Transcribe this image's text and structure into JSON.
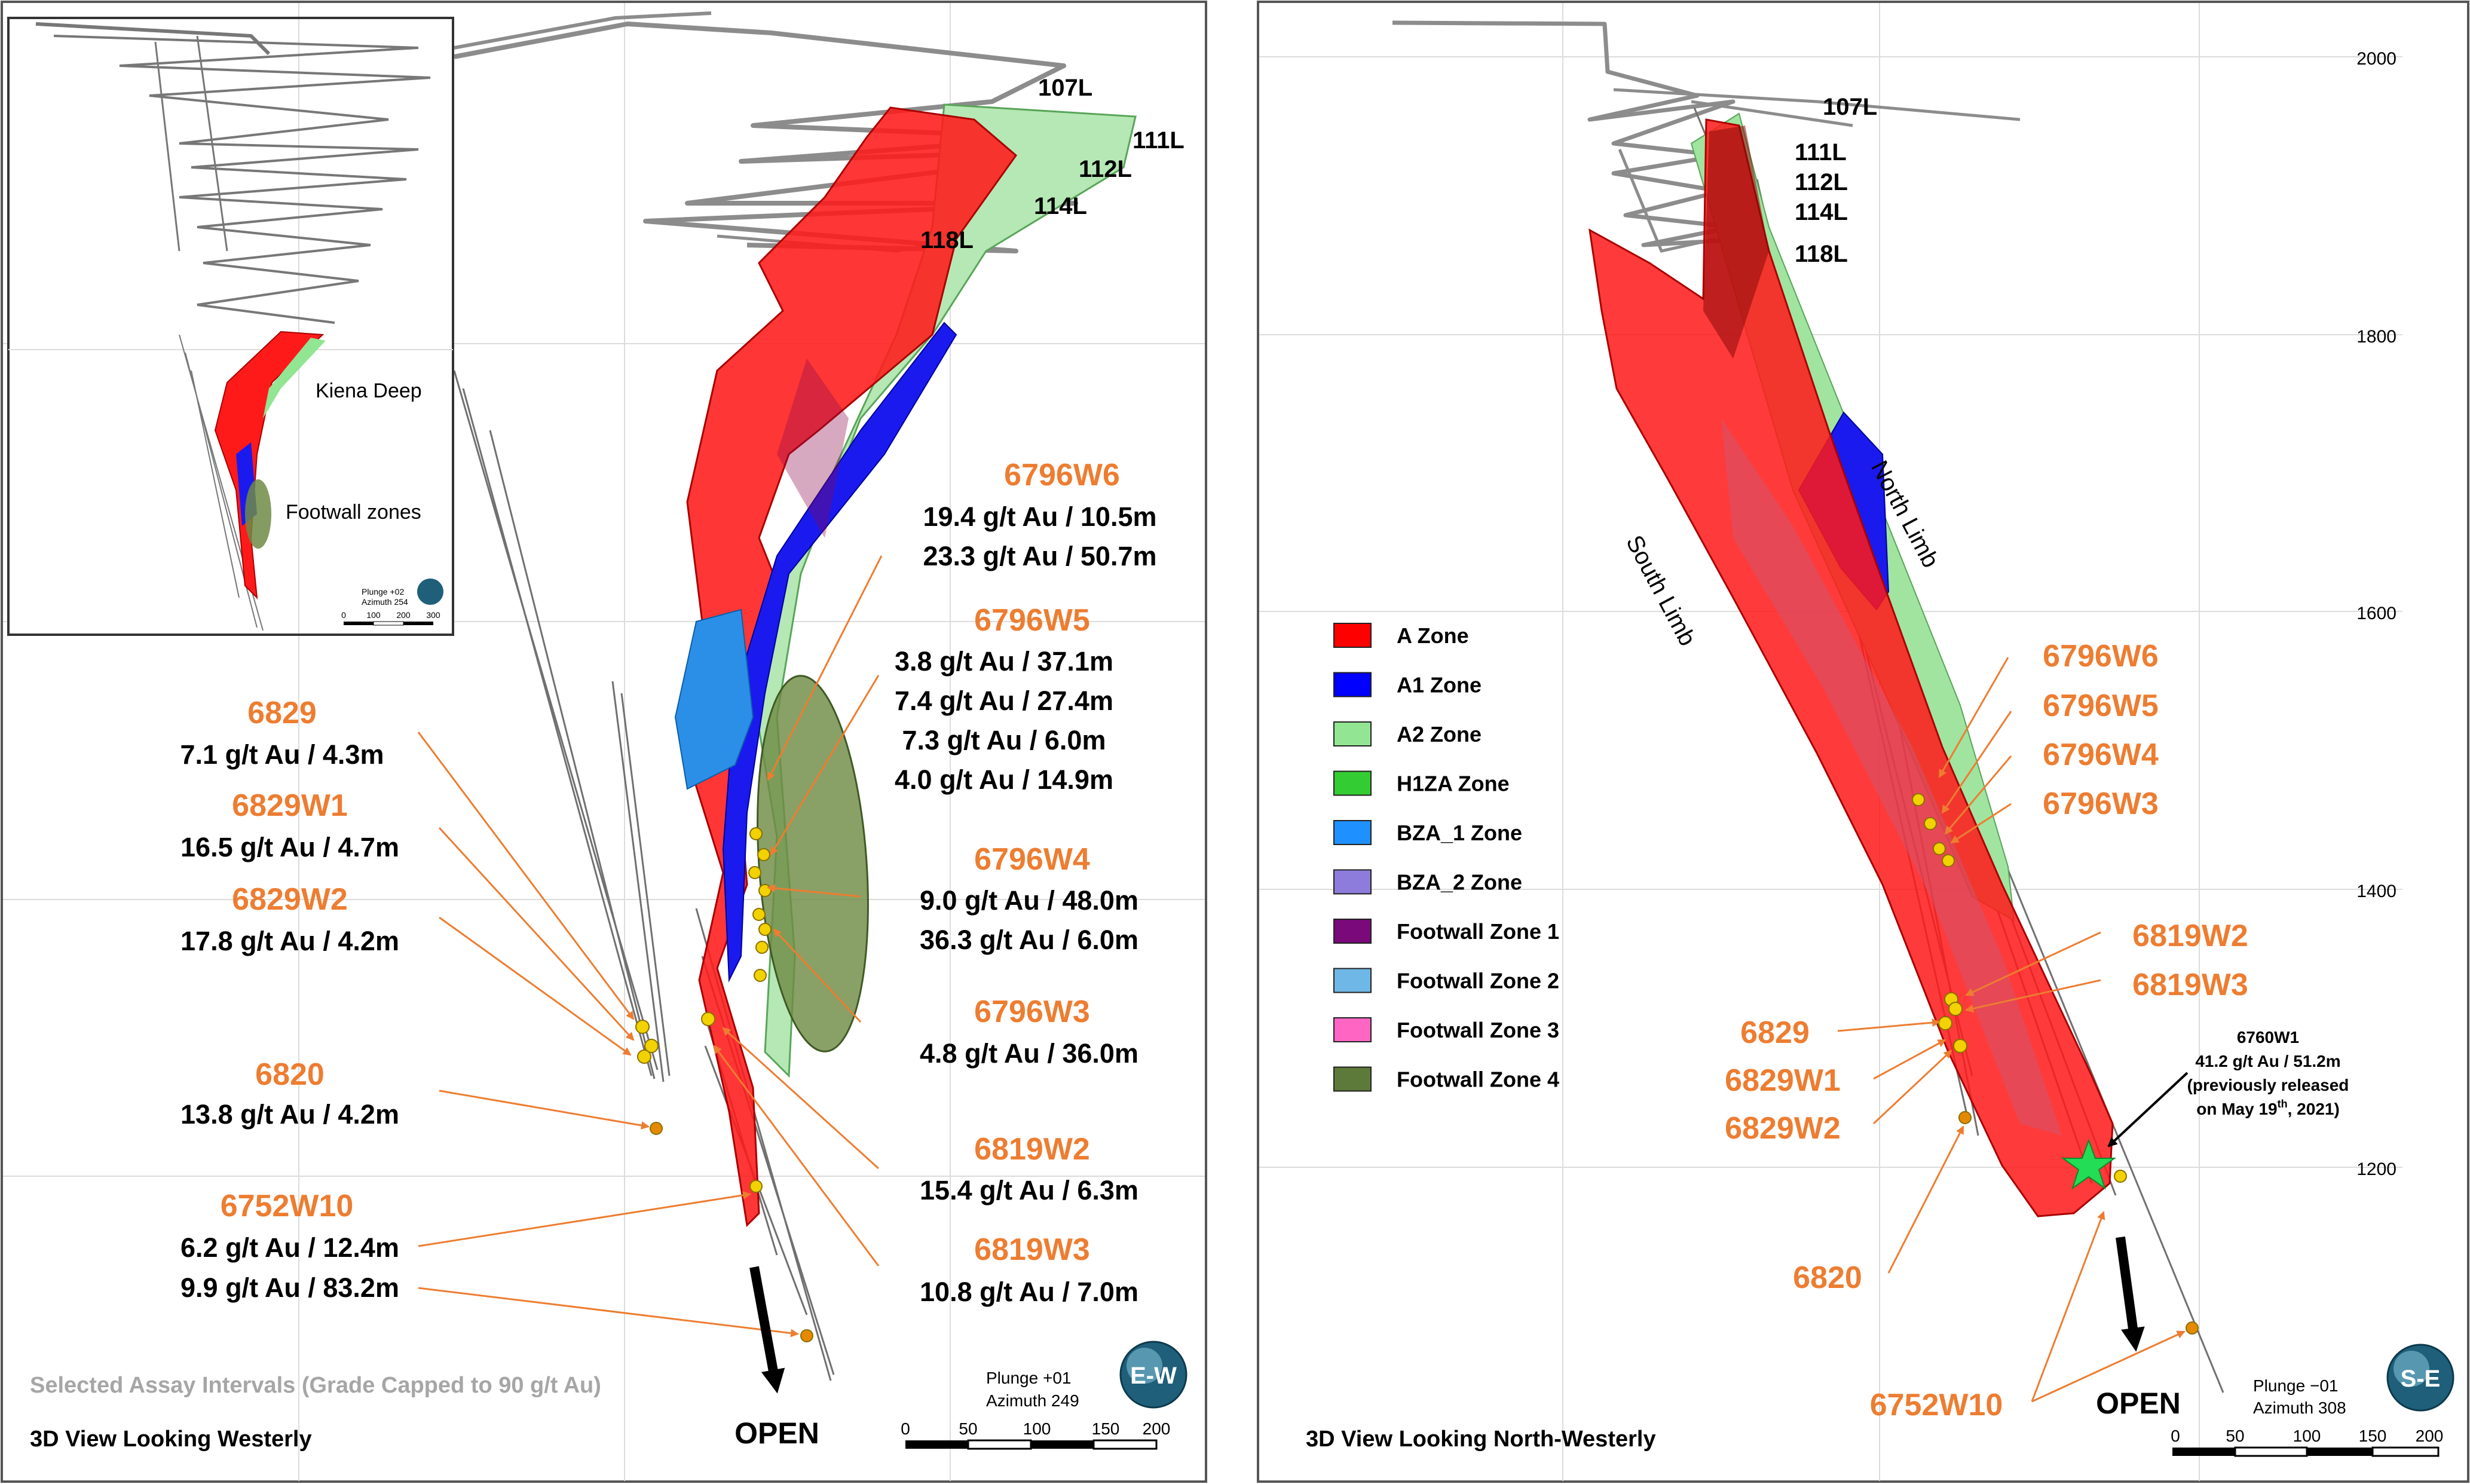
{
  "left_panel": {
    "view_title": "3D View Looking Westerly",
    "disclaimer": "Selected Assay Intervals (Grade Capped to 90 g/t Au)",
    "open_label": "OPEN",
    "plunge": "Plunge +01",
    "azimuth": "Azimuth 249",
    "compass": "E-W",
    "scale_ticks": [
      "0",
      "50",
      "100",
      "150",
      "200"
    ],
    "levels": [
      "107L",
      "111L",
      "112L",
      "114L",
      "118L"
    ],
    "holes": [
      {
        "name": "6796W6",
        "intervals": [
          "19.4 g/t Au / 10.5m",
          "23.3 g/t Au / 50.7m"
        ]
      },
      {
        "name": "6796W5",
        "intervals": [
          "3.8 g/t Au / 37.1m",
          "7.4 g/t Au / 27.4m",
          "7.3 g/t Au / 6.0m",
          "4.0 g/t Au / 14.9m"
        ]
      },
      {
        "name": "6796W4",
        "intervals": [
          "9.0 g/t Au / 48.0m",
          "36.3 g/t Au / 6.0m"
        ]
      },
      {
        "name": "6796W3",
        "intervals": [
          "4.8 g/t Au / 36.0m"
        ]
      },
      {
        "name": "6819W2",
        "intervals": [
          "15.4 g/t Au / 6.3m"
        ]
      },
      {
        "name": "6819W3",
        "intervals": [
          "10.8 g/t Au / 7.0m"
        ]
      },
      {
        "name": "6829",
        "intervals": [
          "7.1 g/t Au / 4.3m"
        ]
      },
      {
        "name": "6829W1",
        "intervals": [
          "16.5 g/t Au / 4.7m"
        ]
      },
      {
        "name": "6829W2",
        "intervals": [
          "17.8 g/t Au / 4.2m"
        ]
      },
      {
        "name": "6820",
        "intervals": [
          "13.8 g/t Au / 4.2m"
        ]
      },
      {
        "name": "6752W10",
        "intervals": [
          "6.2 g/t Au / 12.4m",
          "9.9 g/t Au / 83.2m"
        ]
      }
    ],
    "inset": {
      "kiena_deep": "Kiena Deep",
      "footwall_zones": "Footwall zones",
      "plunge": "Plunge +02",
      "azimuth": "Azimuth 254",
      "scale_ticks": [
        "0",
        "100",
        "200",
        "300"
      ]
    }
  },
  "right_panel": {
    "view_title": "3D View Looking North-Westerly",
    "open_label": "OPEN",
    "plunge": "Plunge −01",
    "azimuth": "Azimuth 308",
    "compass": "S-E",
    "scale_ticks": [
      "0",
      "50",
      "100",
      "150",
      "200"
    ],
    "elevations": [
      "2000",
      "1800",
      "1600",
      "1400",
      "1200"
    ],
    "levels": [
      "107L",
      "111L",
      "112L",
      "114L",
      "118L"
    ],
    "north_limb": "North Limb",
    "south_limb": "South Limb",
    "holes": [
      "6796W6",
      "6796W5",
      "6796W4",
      "6796W3",
      "6819W2",
      "6819W3",
      "6829",
      "6829W1",
      "6829W2",
      "6820",
      "6752W10"
    ],
    "callout": {
      "hole": "6760W1",
      "assay": "41.2 g/t Au / 51.2m",
      "note1": "(previously released",
      "note2_prefix": "on May 19",
      "note2_sup": "th",
      "note2_suffix": ", 2021)"
    },
    "legend": [
      {
        "label": "A Zone",
        "color": "#ff0000"
      },
      {
        "label": "A1 Zone",
        "color": "#0000ff"
      },
      {
        "label": "A2 Zone",
        "color": "#92e592"
      },
      {
        "label": "H1ZA Zone",
        "color": "#33cc33"
      },
      {
        "label": "BZA_1 Zone",
        "color": "#1e90ff"
      },
      {
        "label": "BZA_2 Zone",
        "color": "#8e7cdd"
      },
      {
        "label": "Footwall Zone 1",
        "color": "#7a0a7a"
      },
      {
        "label": "Footwall Zone 2",
        "color": "#6fb7e6"
      },
      {
        "label": "Footwall Zone 3",
        "color": "#ff66c4"
      },
      {
        "label": "Footwall Zone 4",
        "color": "#5e7a3a"
      }
    ]
  }
}
